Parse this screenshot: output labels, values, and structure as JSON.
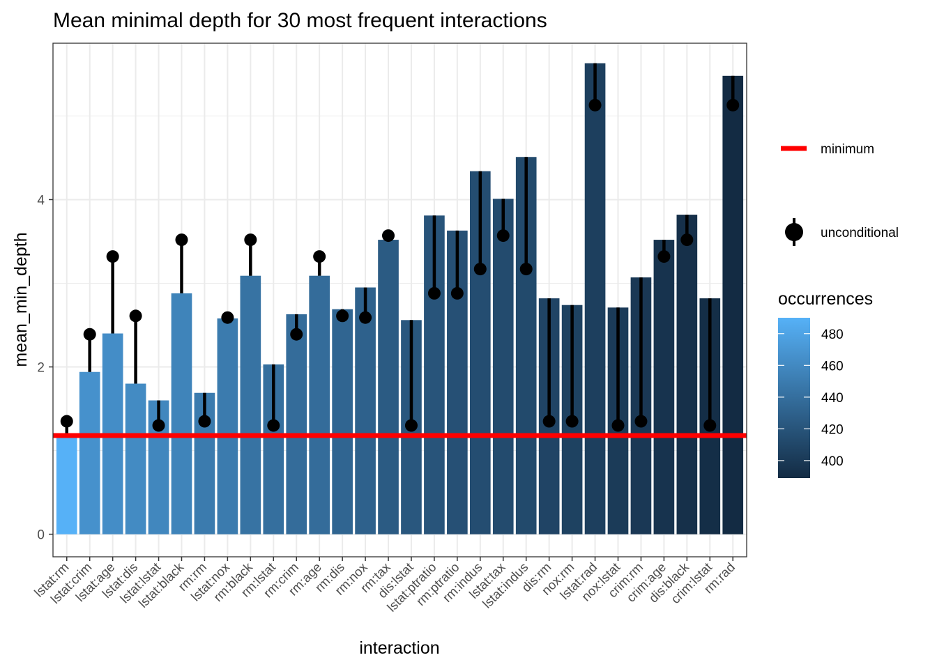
{
  "chart_data": {
    "type": "bar",
    "title": "Mean minimal depth for 30 most frequent interactions",
    "xlabel": "interaction",
    "ylabel": "mean_min_depth",
    "ylim": [
      -0.27,
      5.87
    ],
    "yticks": [
      0,
      2,
      4
    ],
    "grid": true,
    "categories": [
      "lstat:rm",
      "lstat:crim",
      "lstat:age",
      "lstat:dis",
      "lstat:lstat",
      "lstat:black",
      "rm:rm",
      "lstat:nox",
      "rm:black",
      "rm:lstat",
      "rm:crim",
      "rm:age",
      "rm:dis",
      "rm:nox",
      "rm:tax",
      "dis:lstat",
      "lstat:ptratio",
      "rm:ptratio",
      "rm:indus",
      "lstat:tax",
      "lstat:indus",
      "dis:rm",
      "nox:rm",
      "lstat:rad",
      "nox:lstat",
      "crim:rm",
      "crim:age",
      "dis:black",
      "crim:lstat",
      "rm:rad"
    ],
    "series": [
      {
        "name": "mean_min_depth",
        "values": [
          1.18,
          1.94,
          2.4,
          1.8,
          1.6,
          2.88,
          1.69,
          2.58,
          3.09,
          2.03,
          2.63,
          3.09,
          2.69,
          2.95,
          3.52,
          2.56,
          3.81,
          3.63,
          4.34,
          4.01,
          4.51,
          2.82,
          2.74,
          5.63,
          2.71,
          3.07,
          3.52,
          3.82,
          2.82,
          5.48
        ]
      },
      {
        "name": "unconditional",
        "values": [
          1.35,
          2.39,
          3.32,
          2.61,
          1.3,
          3.52,
          1.35,
          2.59,
          3.52,
          1.3,
          2.39,
          3.32,
          2.61,
          2.59,
          3.57,
          1.3,
          2.88,
          2.88,
          3.17,
          3.57,
          3.17,
          1.35,
          1.35,
          5.13,
          1.3,
          1.35,
          3.32,
          3.52,
          1.3,
          5.13
        ]
      }
    ],
    "occurrences": [
      490,
      466,
      463,
      461,
      458,
      456,
      449,
      449,
      443,
      440,
      438,
      438,
      433,
      430,
      425,
      422,
      420,
      417,
      415,
      413,
      412,
      408,
      406,
      404,
      401,
      399,
      395,
      393,
      391,
      389
    ],
    "minimum": 1.18,
    "legend": {
      "placement": "right",
      "minimum_label": "minimum",
      "unconditional_label": "unconditional",
      "fill_title": "occurrences",
      "fill_ticks": [
        480,
        460,
        440,
        420,
        400
      ],
      "fill_range": [
        389,
        490
      ]
    },
    "colors": {
      "low": "#132b43",
      "high": "#56b1f7",
      "minimum_line": "#ff0000",
      "point": "#000000",
      "grid": "#ebebeb",
      "panel_border": "#333333"
    }
  }
}
